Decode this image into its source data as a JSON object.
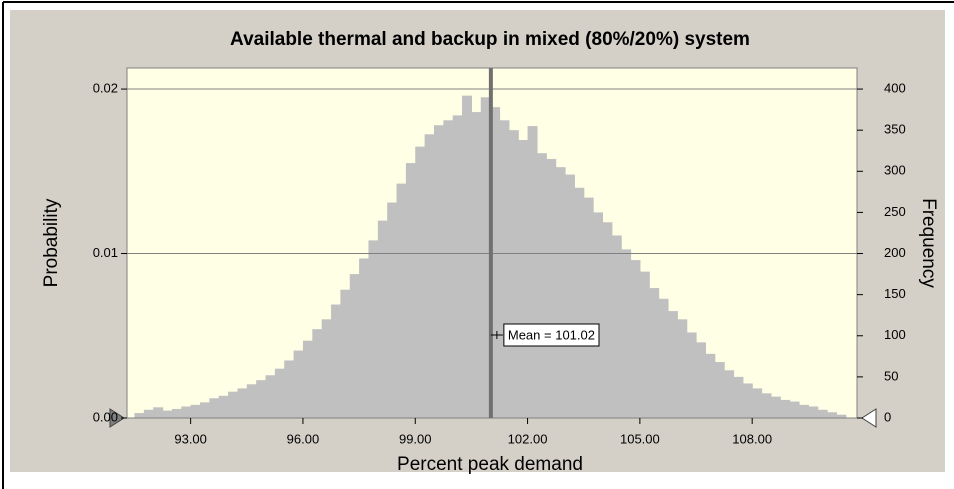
{
  "chart_data": {
    "type": "histogram",
    "title": "Available thermal and backup in mixed (80%/20%) system",
    "xlabel": "Percent peak demand",
    "ylabel": "Probability",
    "y2label": "Frequency",
    "color": "#c0c0c0",
    "bins": [
      91.5,
      91.75,
      92,
      92.25,
      92.5,
      92.75,
      93,
      93.25,
      93.5,
      93.75,
      94,
      94.25,
      94.5,
      94.75,
      95,
      95.25,
      95.5,
      95.75,
      96,
      96.25,
      96.5,
      96.75,
      97,
      97.25,
      97.5,
      97.75,
      98,
      98.25,
      98.5,
      98.75,
      99,
      99.25,
      99.5,
      99.75,
      100,
      100.25,
      100.5,
      100.75,
      101,
      101.25,
      101.5,
      101.75,
      102,
      102.25,
      102.5,
      102.75,
      103,
      103.25,
      103.5,
      103.75,
      104,
      104.25,
      104.5,
      104.75,
      105,
      105.25,
      105.5,
      105.75,
      106,
      106.25,
      106.5,
      106.75,
      107,
      107.25,
      107.5,
      107.75,
      108,
      108.25,
      108.5,
      108.75,
      109,
      109.25,
      109.5,
      109.75,
      110,
      110.25,
      110.5
    ],
    "counts": [
      6,
      10,
      13,
      9,
      11,
      14,
      16,
      19,
      24,
      27,
      32,
      36,
      41,
      46,
      52,
      60,
      70,
      82,
      94,
      108,
      120,
      138,
      156,
      175,
      194,
      216,
      240,
      262,
      285,
      310,
      330,
      345,
      356,
      362,
      368,
      392,
      372,
      390,
      378,
      362,
      350,
      338,
      355,
      322,
      315,
      305,
      296,
      280,
      268,
      250,
      238,
      222,
      205,
      192,
      178,
      158,
      145,
      130,
      120,
      104,
      92,
      78,
      68,
      58,
      50,
      42,
      36,
      30,
      26,
      22,
      20,
      16,
      14,
      10,
      7,
      4
    ],
    "counts_axis": "y2",
    "mean": {
      "value": 101.02,
      "label": "Mean = 101.02"
    },
    "xlim": [
      91.3,
      110.8
    ],
    "xticks": [
      {
        "value": 93,
        "label": "93.00"
      },
      {
        "value": 96,
        "label": "96.00"
      },
      {
        "value": 99,
        "label": "99.00"
      },
      {
        "value": 102,
        "label": "102.00"
      },
      {
        "value": 105,
        "label": "105.00"
      },
      {
        "value": 108,
        "label": "108.00"
      }
    ],
    "ylim": [
      0,
      0.02128
    ],
    "yticks": [
      {
        "value": 0,
        "label": "0.00"
      },
      0.01,
      0.02
    ],
    "y2lim": [
      0,
      425.6
    ],
    "y2ticks": [
      0,
      50,
      100,
      150,
      200,
      250,
      300,
      350,
      400
    ],
    "grid": true
  }
}
